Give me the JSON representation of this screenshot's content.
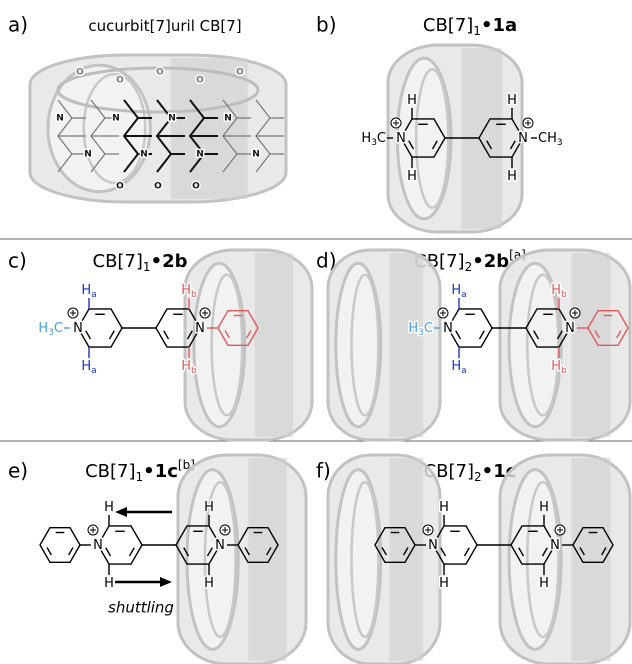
{
  "panels": [
    {
      "label": "a)",
      "title": {
        "text": "cucurbit[7]uril CB[7]"
      },
      "structure_labels": [
        "O",
        "O",
        "O",
        "O",
        "O",
        "N",
        "N",
        "N",
        "N",
        "N",
        "N",
        "N",
        "N",
        "O",
        "O",
        "O"
      ]
    },
    {
      "label": "b)",
      "title": {
        "text": "CB[7]",
        "sub": "1",
        "dot": "•",
        "bold": "1a"
      },
      "molecule": {
        "lend": {
          "text": "H",
          "sub": "3",
          "after": "C",
          "color": "#000000"
        },
        "lt": {
          "text": "H",
          "color": "#000000"
        },
        "lb": {
          "text": "H",
          "color": "#000000"
        },
        "ln": {
          "text": "N",
          "color": "#000000"
        },
        "rt": {
          "text": "H",
          "color": "#000000"
        },
        "rb": {
          "text": "H",
          "color": "#000000"
        },
        "rn": {
          "text": "N",
          "color": "#000000"
        },
        "rend": {
          "text": "CH",
          "sub": "3",
          "color": "#000000"
        }
      }
    },
    {
      "label": "c)",
      "title": {
        "text": "CB[7]",
        "sub": "1",
        "dot": "•",
        "bold": "2b"
      },
      "molecule": {
        "lend": {
          "text": "H",
          "sub": "3",
          "after": "C",
          "color": "#4a9fd8"
        },
        "lt": {
          "text": "H",
          "sub": "a",
          "color": "#1a35c0"
        },
        "lb": {
          "text": "H",
          "sub": "a",
          "color": "#1a35c0"
        },
        "ln": {
          "text": "N",
          "color": "#000000"
        },
        "rt": {
          "text": "H",
          "sub": "b",
          "color": "#e05a5a"
        },
        "rb": {
          "text": "H",
          "sub": "b",
          "color": "#e05a5a"
        },
        "rn": {
          "text": "N",
          "color": "#000000"
        },
        "rphenyl": "#e05a5a"
      }
    },
    {
      "label": "d)",
      "title": {
        "text": "CB[7]",
        "sub": "2",
        "dot": "•",
        "bold": "2b",
        "sup": "[a]"
      },
      "molecule": {
        "lend": {
          "text": "H",
          "sub": "3",
          "after": "C",
          "color": "#4a9fd8"
        },
        "lt": {
          "text": "H",
          "sub": "a",
          "color": "#1a35c0"
        },
        "lb": {
          "text": "H",
          "sub": "a",
          "color": "#1a35c0"
        },
        "ln": {
          "text": "N",
          "color": "#000000"
        },
        "rt": {
          "text": "H",
          "sub": "b",
          "color": "#e05a5a"
        },
        "rb": {
          "text": "H",
          "sub": "b",
          "color": "#e05a5a"
        },
        "rn": {
          "text": "N",
          "color": "#000000"
        },
        "rphenyl": "#e05a5a"
      }
    },
    {
      "label": "e)",
      "title": {
        "text": "CB[7]",
        "sub": "1",
        "dot": "•",
        "bold": "1c",
        "sup": "[b]"
      },
      "annotation": "shuttling",
      "molecule": {
        "lphenyl": "#000000",
        "lt": {
          "text": "H",
          "color": "#000000"
        },
        "lb": {
          "text": "H",
          "color": "#000000"
        },
        "ln": {
          "text": "N",
          "color": "#000000"
        },
        "rt": {
          "text": "H",
          "color": "#000000"
        },
        "rb": {
          "text": "H",
          "color": "#000000"
        },
        "rn": {
          "text": "N",
          "color": "#000000"
        },
        "rphenyl": "#000000"
      }
    },
    {
      "label": "f)",
      "title": {
        "text": "CB[7]",
        "sub": "2",
        "dot": "•",
        "bold": "1c"
      },
      "molecule": {
        "lphenyl": "#000000",
        "lt": {
          "text": "H",
          "color": "#000000"
        },
        "lb": {
          "text": "H",
          "color": "#000000"
        },
        "ln": {
          "text": "N",
          "color": "#000000"
        },
        "rt": {
          "text": "H",
          "color": "#000000"
        },
        "rb": {
          "text": "H",
          "color": "#000000"
        },
        "rn": {
          "text": "N",
          "color": "#000000"
        },
        "rphenyl": "#000000"
      }
    }
  ]
}
